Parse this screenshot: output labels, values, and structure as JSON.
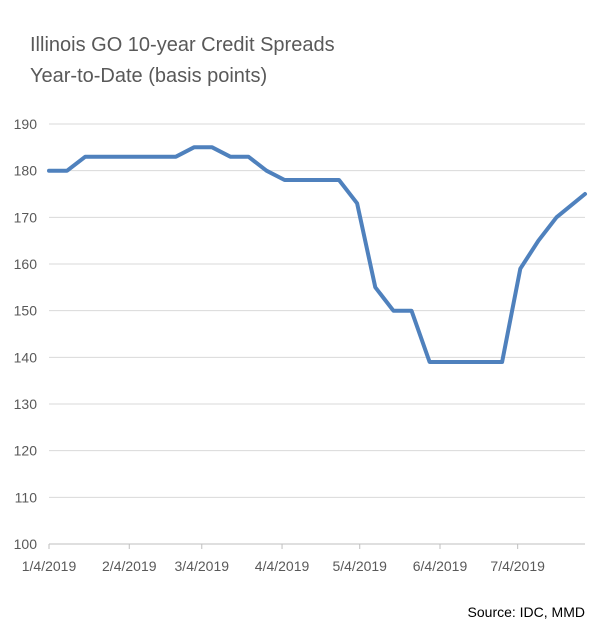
{
  "chart_data": {
    "type": "line",
    "title_lines": [
      "Illinois GO 10-year Credit Spreads",
      "Year-to-Date (basis points)"
    ],
    "xlabel": "",
    "ylabel": "",
    "ylim": [
      100,
      190
    ],
    "yticks": [
      100,
      110,
      120,
      130,
      140,
      150,
      160,
      170,
      180,
      190
    ],
    "xlim": [
      "2019-01-04",
      "2019-07-30"
    ],
    "xticks": [
      {
        "date": "2019-01-04",
        "label": "1/4/2019"
      },
      {
        "date": "2019-02-04",
        "label": "2/4/2019"
      },
      {
        "date": "2019-03-04",
        "label": "3/4/2019"
      },
      {
        "date": "2019-04-04",
        "label": "4/4/2019"
      },
      {
        "date": "2019-05-04",
        "label": "5/4/2019"
      },
      {
        "date": "2019-06-04",
        "label": "6/4/2019"
      },
      {
        "date": "2019-07-04",
        "label": "7/4/2019"
      }
    ],
    "grid": true,
    "series": [
      {
        "color": "#4F81BD",
        "x": [
          "2019-01-04",
          "2019-01-11",
          "2019-01-18",
          "2019-01-25",
          "2019-02-01",
          "2019-02-08",
          "2019-02-15",
          "2019-02-22",
          "2019-03-01",
          "2019-03-08",
          "2019-03-15",
          "2019-03-22",
          "2019-03-29",
          "2019-04-05",
          "2019-04-12",
          "2019-04-19",
          "2019-04-26",
          "2019-05-03",
          "2019-05-10",
          "2019-05-17",
          "2019-05-24",
          "2019-05-31",
          "2019-06-07",
          "2019-06-14",
          "2019-06-21",
          "2019-06-28",
          "2019-07-05",
          "2019-07-12",
          "2019-07-19",
          "2019-07-30"
        ],
        "values": [
          180,
          180,
          183,
          183,
          183,
          183,
          183,
          183,
          185,
          185,
          183,
          183,
          180,
          178,
          178,
          178,
          178,
          173,
          155,
          150,
          150,
          139,
          139,
          139,
          139,
          139,
          159,
          165,
          170,
          175
        ]
      }
    ]
  },
  "source_text": "Source: IDC, MMD"
}
